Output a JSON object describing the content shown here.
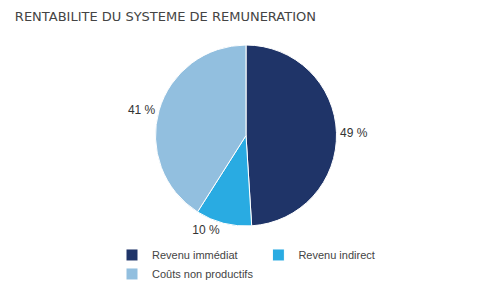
{
  "chart_data": {
    "type": "pie",
    "title": "RENTABILITE DU SYSTEME DE REMUNERATION",
    "categories": [
      "Revenu immédiat",
      "Revenu indirect",
      "Coûts non productifs"
    ],
    "values": [
      49,
      10,
      41
    ],
    "value_labels": [
      "49 %",
      "10 %",
      "41 %"
    ],
    "colors": [
      "#1f3468",
      "#29abe2",
      "#92bfdf"
    ],
    "data_labels": true,
    "legend": "bottom"
  }
}
